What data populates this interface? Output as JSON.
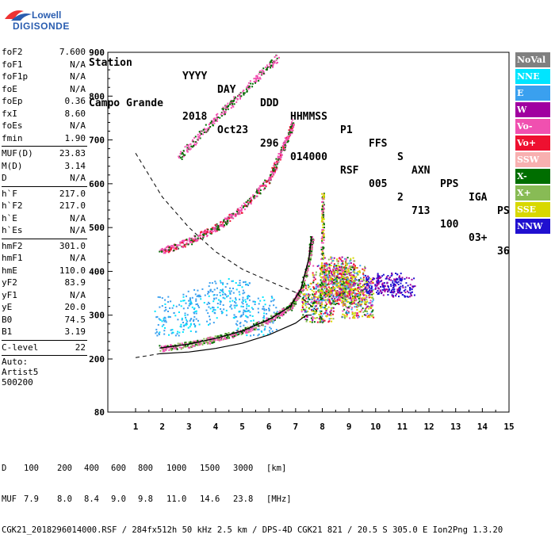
{
  "logo": {
    "line1": "Lowell",
    "line2": "DIGISONDE"
  },
  "header": {
    "labels": [
      "Station",
      "YYYY",
      "DAY",
      "DDD",
      "HHMMSS",
      "P1",
      "FFS",
      "S",
      "AXN",
      "PPS",
      "IGA",
      "PS"
    ],
    "values": [
      "Campo Grande",
      "2018",
      "Oct23",
      "296",
      "014000",
      "RSF",
      "005",
      "2",
      "713",
      "100",
      "03+",
      "36"
    ]
  },
  "params": {
    "group1": [
      {
        "label": "foF2",
        "value": "7.600"
      },
      {
        "label": "foF1",
        "value": "N/A"
      },
      {
        "label": "foF1p",
        "value": "N/A"
      },
      {
        "label": "foE",
        "value": "N/A"
      },
      {
        "label": "foEp",
        "value": "0.36"
      },
      {
        "label": "fxI",
        "value": "8.60"
      },
      {
        "label": "foEs",
        "value": "N/A"
      },
      {
        "label": "fmin",
        "value": "1.90"
      }
    ],
    "group2": [
      {
        "label": "MUF(D)",
        "value": "23.83"
      },
      {
        "label": "M(D)",
        "value": "3.14"
      },
      {
        "label": "D",
        "value": "N/A"
      }
    ],
    "group3": [
      {
        "label": "h`F",
        "value": "217.0"
      },
      {
        "label": "h`F2",
        "value": "217.0"
      },
      {
        "label": "h`E",
        "value": "N/A"
      },
      {
        "label": "h`Es",
        "value": "N/A"
      }
    ],
    "group4": [
      {
        "label": "hmF2",
        "value": "301.0"
      },
      {
        "label": "hmF1",
        "value": "N/A"
      },
      {
        "label": "hmE",
        "value": "110.0"
      },
      {
        "label": "yF2",
        "value": "83.9"
      },
      {
        "label": "yF1",
        "value": "N/A"
      },
      {
        "label": "yE",
        "value": "20.0"
      },
      {
        "label": "B0",
        "value": "74.5"
      },
      {
        "label": "B1",
        "value": "3.19"
      }
    ],
    "group5": [
      {
        "label": "C-level",
        "value": "22"
      }
    ],
    "auto": [
      "Auto:",
      "Artist5",
      "500200"
    ]
  },
  "legend": [
    {
      "label": "NoVal",
      "color": "#808080"
    },
    {
      "label": "NNE",
      "color": "#00e5ff"
    },
    {
      "label": "E",
      "color": "#3aa0ef"
    },
    {
      "label": "W",
      "color": "#a000a0"
    },
    {
      "label": "Vo-",
      "color": "#f050b0"
    },
    {
      "label": "Vo+",
      "color": "#ee1030"
    },
    {
      "label": "SSW",
      "color": "#f8b0b0"
    },
    {
      "label": "X-",
      "color": "#006e00"
    },
    {
      "label": "X+",
      "color": "#88bb55"
    },
    {
      "label": "SSE",
      "color": "#d8d800"
    },
    {
      "label": "NNW",
      "color": "#2010d0"
    }
  ],
  "chart_data": {
    "type": "scatter",
    "x_ticks": [
      "1",
      "2",
      "3",
      "4",
      "5",
      "6",
      "7",
      "8",
      "9",
      "10",
      "11",
      "12",
      "13",
      "14",
      "15"
    ],
    "y_ticks": [
      "80",
      "200",
      "300",
      "400",
      "500",
      "600",
      "700",
      "800",
      "900"
    ],
    "x_range": [
      1,
      15
    ],
    "y_range": [
      80,
      900
    ],
    "profile_true_height": [
      [
        1.9,
        212
      ],
      [
        3,
        216
      ],
      [
        4,
        224
      ],
      [
        5,
        236
      ],
      [
        6,
        255
      ],
      [
        7,
        282
      ],
      [
        7.4,
        300
      ],
      [
        7.6,
        300
      ]
    ],
    "profile_model": [
      [
        1.9,
        225
      ],
      [
        3,
        234
      ],
      [
        4,
        247
      ],
      [
        5,
        264
      ],
      [
        6,
        290
      ],
      [
        6.8,
        320
      ],
      [
        7.2,
        360
      ],
      [
        7.5,
        430
      ],
      [
        7.6,
        480
      ]
    ],
    "dashed_curve": [
      [
        1,
        670
      ],
      [
        2,
        570
      ],
      [
        3,
        500
      ],
      [
        4,
        445
      ],
      [
        5,
        405
      ],
      [
        6,
        378
      ],
      [
        7,
        352
      ],
      [
        7.8,
        310
      ]
    ],
    "dashed_low": [
      [
        1,
        203
      ],
      [
        1.9,
        212
      ]
    ],
    "trace_o_second_hop": [
      [
        1.9,
        445
      ],
      [
        3,
        470
      ],
      [
        4,
        500
      ],
      [
        5,
        545
      ],
      [
        6,
        612
      ],
      [
        6.5,
        680
      ],
      [
        6.9,
        740
      ]
    ],
    "trace_o_third_hop": [
      [
        2.6,
        660
      ],
      [
        3.5,
        720
      ],
      [
        4.5,
        780
      ],
      [
        5.5,
        840
      ],
      [
        6.3,
        890
      ]
    ],
    "cluster_x_ray": [
      [
        7.8,
        330
      ],
      [
        8.2,
        370
      ],
      [
        8.6,
        390
      ],
      [
        9,
        370
      ],
      [
        9.3,
        340
      ]
    ],
    "cluster_nnw": [
      [
        10,
        370
      ],
      [
        10.5,
        375
      ],
      [
        11,
        365
      ]
    ],
    "cluster_e_scatter": [
      [
        2.5,
        300
      ],
      [
        3.5,
        320
      ],
      [
        4.5,
        340
      ],
      [
        5.5,
        300
      ]
    ]
  },
  "footer": {
    "d_label": "D",
    "d_values": [
      "100",
      "200",
      "400",
      "600",
      "800",
      "1000",
      "1500",
      "3000",
      "[km]"
    ],
    "muf_label": "MUF",
    "muf_values": [
      "7.9",
      "8.0",
      "8.4",
      "9.0",
      "9.8",
      "11.0",
      "14.6",
      "23.8",
      "[MHz]"
    ],
    "file_line": "CGK21_2018296014000.RSF / 284fx512h 50 kHz 2.5 km / DPS-4D CGK21 821 / 20.5 S 305.0 E Ion2Png 1.3.20"
  }
}
